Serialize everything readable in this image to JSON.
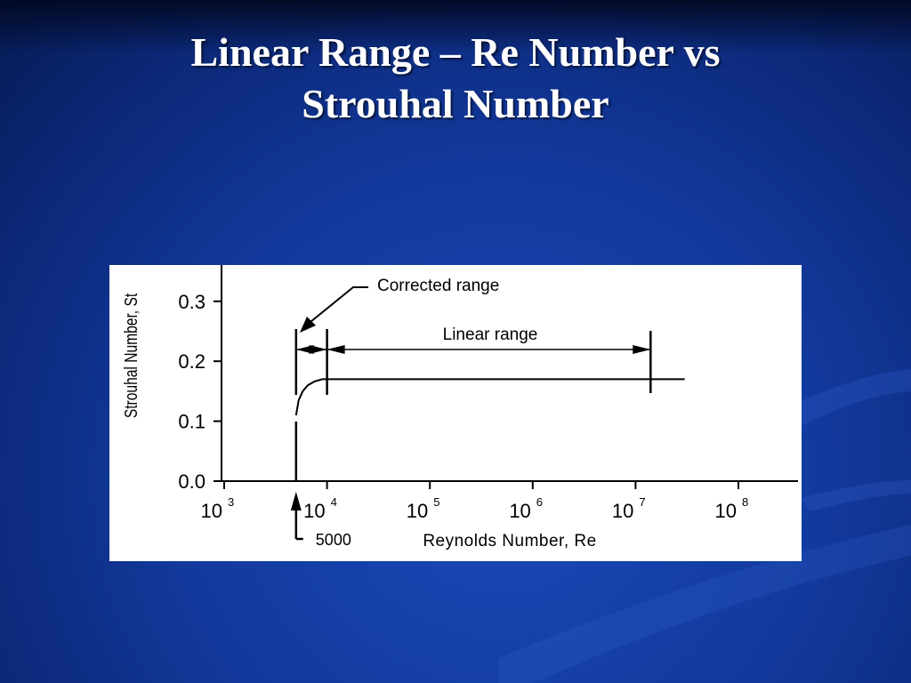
{
  "slide": {
    "title_line1": "Linear Range – Re Number vs",
    "title_line2": "Strouhal Number"
  },
  "chart_data": {
    "type": "line",
    "x_scale": "log",
    "xlim": [
      1000,
      100000000
    ],
    "ylim": [
      0.0,
      0.35
    ],
    "xlabel": "Reynolds Number, Re",
    "ylabel": "Strouhal Number, St",
    "grid": false,
    "x_ticks": [
      {
        "base": "10",
        "exp": "3",
        "value": 1000
      },
      {
        "base": "10",
        "exp": "4",
        "value": 10000
      },
      {
        "base": "10",
        "exp": "5",
        "value": 100000
      },
      {
        "base": "10",
        "exp": "6",
        "value": 1000000
      },
      {
        "base": "10",
        "exp": "7",
        "value": 10000000
      },
      {
        "base": "10",
        "exp": "8",
        "value": 100000000
      }
    ],
    "y_ticks": [
      "0.0",
      "0.1",
      "0.2",
      "0.3"
    ],
    "y_tick_values": [
      0.0,
      0.1,
      0.2,
      0.3
    ],
    "series": [
      {
        "color": "#000000",
        "points": [
          {
            "x": 5000,
            "y": 0.11
          },
          {
            "x": 5300,
            "y": 0.135
          },
          {
            "x": 5800,
            "y": 0.15
          },
          {
            "x": 6500,
            "y": 0.16
          },
          {
            "x": 7500,
            "y": 0.166
          },
          {
            "x": 9000,
            "y": 0.17
          },
          {
            "x": 10000,
            "y": 0.17
          },
          {
            "x": 30000000,
            "y": 0.17
          }
        ]
      }
    ],
    "markers": [
      {
        "x": 5000,
        "label": "5000"
      }
    ],
    "ranges": [
      {
        "label": "Corrected range",
        "from": 5000,
        "to": 10000
      },
      {
        "label": "Linear range",
        "from": 10000,
        "to": 14000000
      }
    ]
  }
}
